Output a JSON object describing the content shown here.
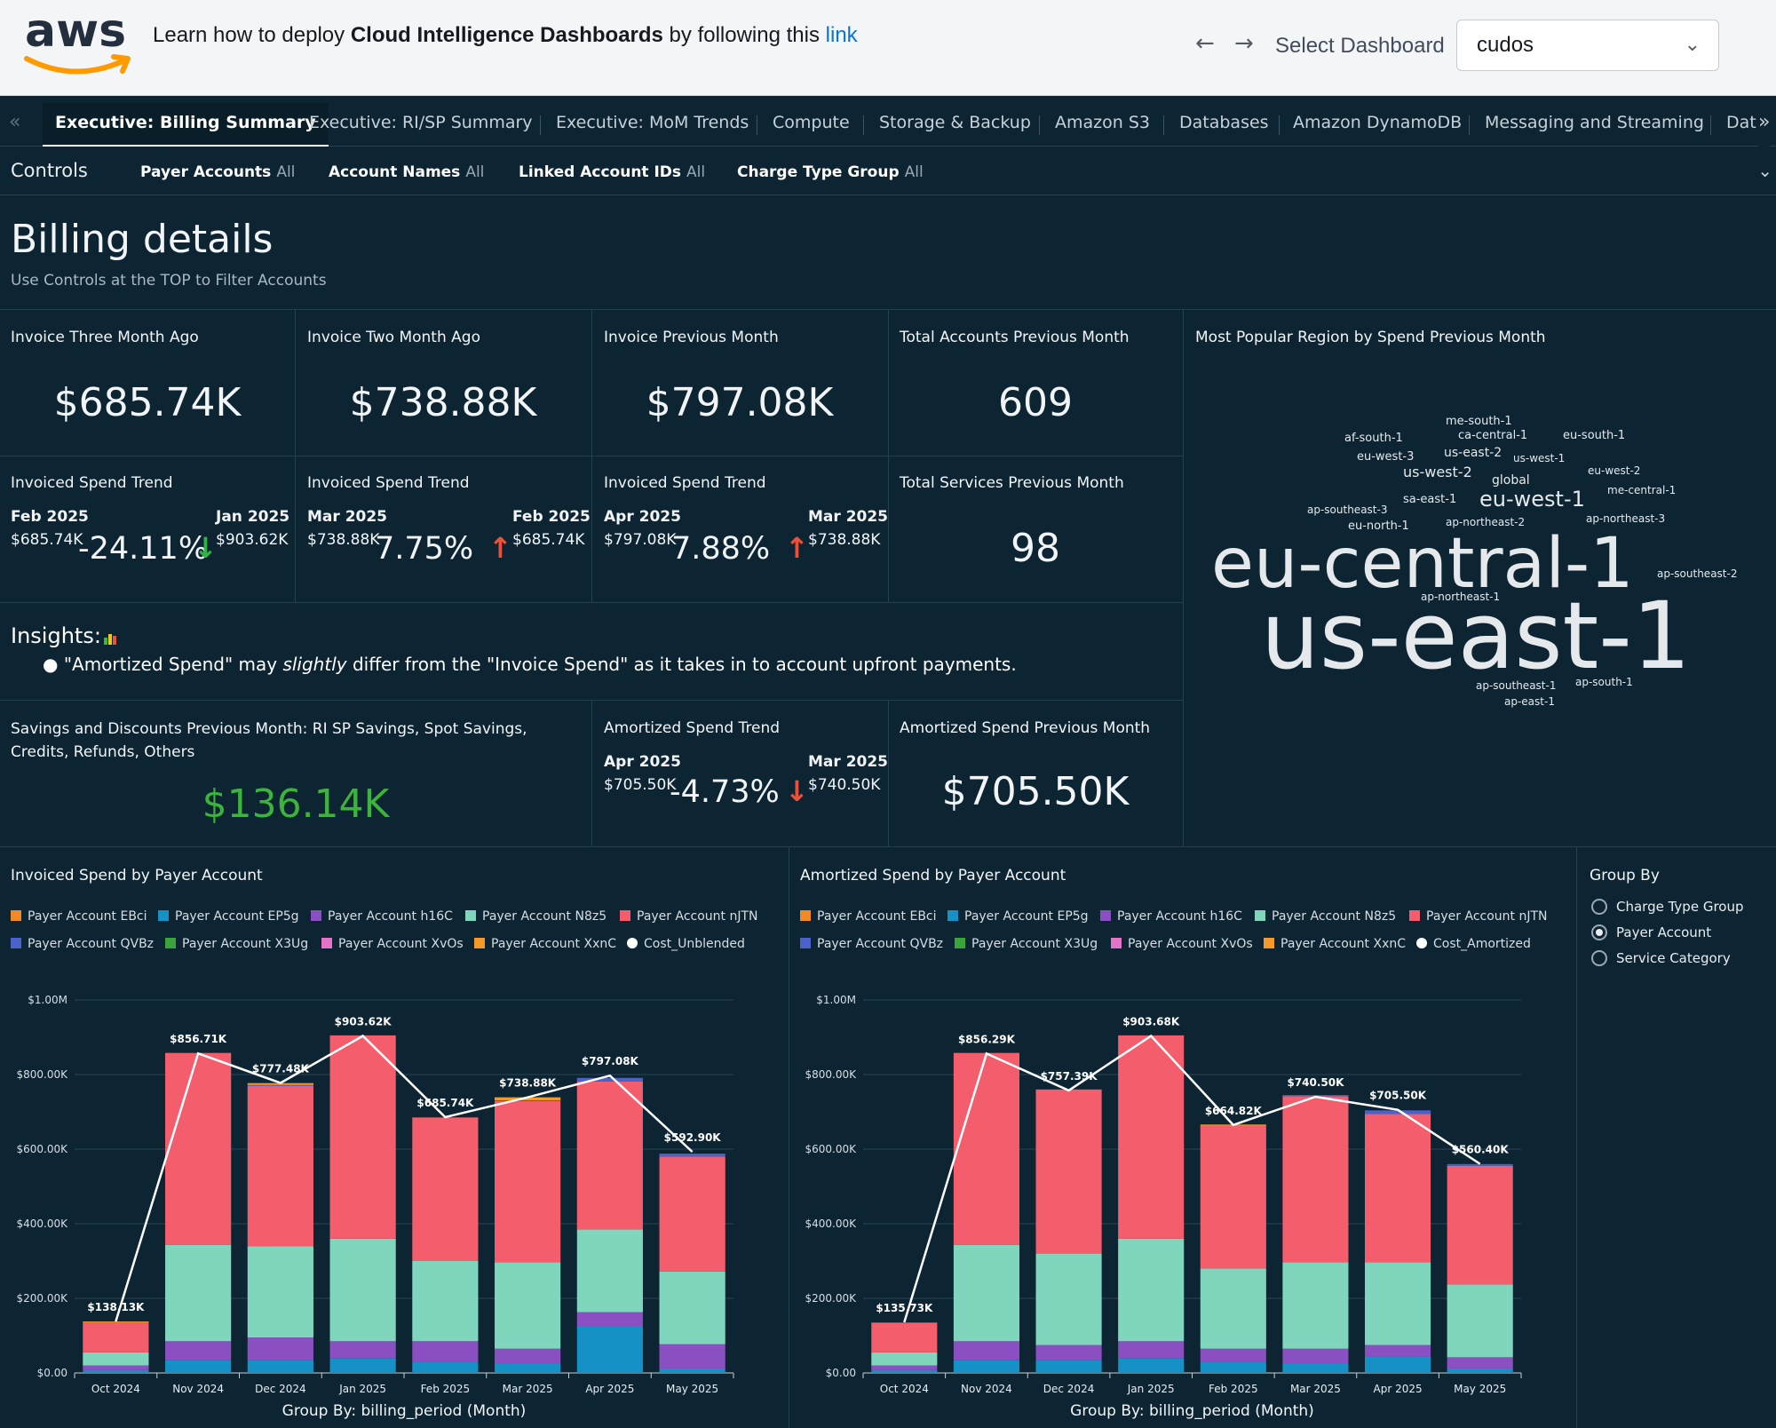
{
  "topbar": {
    "logo_text": "aws",
    "banner": {
      "prefix": "Learn how to deploy ",
      "bold": "Cloud Intelligence Dashboards",
      "middle": " by following this ",
      "link": "link"
    },
    "back_icon": "arrow-left-icon",
    "forward_icon": "arrow-right-icon",
    "select_label": "Select Dashboard",
    "selected_dashboard": "cudos"
  },
  "tabs": [
    {
      "label": "Executive: Billing Summary",
      "active": true
    },
    {
      "label": "Executive: RI/SP Summary"
    },
    {
      "label": "Executive: MoM Trends"
    },
    {
      "label": "Compute"
    },
    {
      "label": "Storage & Backup"
    },
    {
      "label": "Amazon S3"
    },
    {
      "label": "Databases"
    },
    {
      "label": "Amazon DynamoDB"
    },
    {
      "label": "Messaging and Streaming"
    },
    {
      "label": "Dat"
    }
  ],
  "controls": {
    "title": "Controls",
    "items": [
      {
        "label": "Payer Accounts",
        "value": "All"
      },
      {
        "label": "Account Names",
        "value": "All"
      },
      {
        "label": "Linked Account IDs",
        "value": "All"
      },
      {
        "label": "Charge Type Group",
        "value": "All"
      }
    ]
  },
  "billing": {
    "title": "Billing details",
    "subtitle": "Use Controls at the TOP to Filter Accounts"
  },
  "kpis": [
    {
      "title": "Invoice Three Month Ago",
      "value": "$685.74K"
    },
    {
      "title": "Invoice Two Month Ago",
      "value": "$738.88K"
    },
    {
      "title": "Invoice Previous Month",
      "value": "$797.08K"
    },
    {
      "title": "Total Accounts Previous Month",
      "value": "609"
    }
  ],
  "trends": [
    {
      "title": "Invoiced Spend Trend",
      "cur_label": "Feb 2025",
      "cur_value": "$685.74K",
      "pct": "-24.11%",
      "dir": "down",
      "prev_label": "Jan 2025",
      "prev_value": "$903.62K"
    },
    {
      "title": "Invoiced Spend Trend",
      "cur_label": "Mar 2025",
      "cur_value": "$738.88K",
      "pct": "7.75%",
      "dir": "up",
      "prev_label": "Feb 2025",
      "prev_value": "$685.74K"
    },
    {
      "title": "Invoiced Spend Trend",
      "cur_label": "Apr 2025",
      "cur_value": "$797.08K",
      "pct": "7.88%",
      "dir": "up",
      "prev_label": "Mar 2025",
      "prev_value": "$738.88K"
    }
  ],
  "total_services": {
    "title": "Total Services Previous Month",
    "value": "98"
  },
  "insights": {
    "title": "Insights:",
    "icon": "bar-chart-icon",
    "text_a": "\"Amortized Spend\" may ",
    "text_em": "slightly",
    "text_b": " differ from the \"Invoice Spend\" as it takes in to account upfront payments."
  },
  "savings": {
    "title": "Savings and Discounts Previous Month: RI SP Savings, Spot Savings, Credits, Refunds, Others",
    "value": "$136.14K"
  },
  "amortized_trend": {
    "title": "Amortized Spend Trend",
    "cur_label": "Apr 2025",
    "cur_value": "$705.50K",
    "pct": "-4.73%",
    "dir": "down",
    "prev_label": "Mar 2025",
    "prev_value": "$740.50K"
  },
  "amortized_prev": {
    "title": "Amortized Spend Previous Month",
    "value": "$705.50K"
  },
  "wordcloud": {
    "title": "Most Popular Region by Spend Previous Month",
    "words": [
      "me-south-1",
      "af-south-1",
      "ca-central-1",
      "eu-south-1",
      "eu-west-3",
      "us-east-2",
      "us-west-1",
      "us-west-2",
      "eu-west-2",
      "global",
      "me-central-1",
      "sa-east-1",
      "eu-west-1",
      "ap-southeast-3",
      "ap-northeast-3",
      "eu-north-1",
      "ap-northeast-2",
      "eu-central-1",
      "ap-southeast-2",
      "ap-northeast-1",
      "us-east-1",
      "ap-south-1",
      "ap-southeast-1",
      "ap-east-1"
    ]
  },
  "colors": {
    "EBci": "#f08a24",
    "EP5g": "#1591c5",
    "h16C": "#8a4fc0",
    "N8z5": "#7fd6bd",
    "nJTN": "#f45d6c",
    "QVBz": "#4b63c9",
    "X3Ug": "#3aa33a",
    "XvOs": "#e374c7",
    "XxnC": "#f39a2a",
    "line": "#ffffff"
  },
  "groupby": {
    "title": "Group By",
    "options": [
      "Charge Type Group",
      "Payer Account",
      "Service Category"
    ],
    "selected": 1
  },
  "chart_data": [
    {
      "type": "bar",
      "title": "Invoiced Spend by Payer Account",
      "stacked": true,
      "xlabel": "Group By: billing_period (Month)",
      "categories": [
        "Oct 2024",
        "Nov 2024",
        "Dec 2024",
        "Jan 2025",
        "Feb 2025",
        "Mar 2025",
        "Apr 2025",
        "May 2025"
      ],
      "yticks": [
        "$0.00",
        "$200.00K",
        "$400.00K",
        "$600.00K",
        "$800.00K",
        "$1.00M"
      ],
      "ylim": [
        0,
        1000
      ],
      "grid": true,
      "legend_position": "top",
      "series": [
        {
          "name": "Payer Account EBci",
          "key": "EBci",
          "values": [
            0,
            0,
            0,
            0,
            0,
            0,
            0,
            0
          ]
        },
        {
          "name": "Payer Account EP5g",
          "key": "EP5g",
          "values": [
            8,
            35,
            35,
            40,
            30,
            25,
            125,
            12
          ]
        },
        {
          "name": "Payer Account h16C",
          "key": "h16C",
          "values": [
            12,
            50,
            60,
            45,
            55,
            40,
            38,
            65
          ]
        },
        {
          "name": "Payer Account N8z5",
          "key": "N8z5",
          "values": [
            35,
            258,
            245,
            275,
            215,
            232,
            222,
            195
          ]
        },
        {
          "name": "Payer Account nJTN",
          "key": "nJTN",
          "values": [
            80,
            515,
            430,
            545,
            385,
            432,
            396,
            308
          ]
        },
        {
          "name": "Payer Account QVBz",
          "key": "QVBz",
          "values": [
            0,
            0,
            2,
            0,
            0,
            2,
            10,
            8
          ]
        },
        {
          "name": "Payer Account X3Ug",
          "key": "X3Ug",
          "values": [
            0,
            0,
            0,
            0,
            0,
            0,
            0,
            0
          ]
        },
        {
          "name": "Payer Account XvOs",
          "key": "XvOs",
          "values": [
            0,
            0,
            0,
            0,
            0,
            0,
            0,
            0
          ]
        },
        {
          "name": "Payer Account XxnC",
          "key": "XxnC",
          "values": [
            3,
            0,
            5,
            0,
            0,
            8,
            0,
            0
          ]
        }
      ],
      "line": {
        "name": "Cost_Unblended",
        "values": [
          138.13,
          856.71,
          777.48,
          903.62,
          685.74,
          738.88,
          797.08,
          592.9
        ],
        "labels": [
          "$138.13K",
          "$856.71K",
          "$777.48K",
          "$903.62K",
          "$685.74K",
          "$738.88K",
          "$797.08K",
          "$592.90K"
        ]
      }
    },
    {
      "type": "bar",
      "title": "Amortized Spend by Payer Account",
      "stacked": true,
      "xlabel": "Group By: billing_period (Month)",
      "categories": [
        "Oct 2024",
        "Nov 2024",
        "Dec 2024",
        "Jan 2025",
        "Feb 2025",
        "Mar 2025",
        "Apr 2025",
        "May 2025"
      ],
      "yticks": [
        "$0.00",
        "$200.00K",
        "$400.00K",
        "$600.00K",
        "$800.00K",
        "$1.00M"
      ],
      "ylim": [
        0,
        1000
      ],
      "grid": true,
      "legend_position": "top",
      "series": [
        {
          "name": "Payer Account EBci",
          "key": "EBci",
          "values": [
            0,
            0,
            0,
            0,
            0,
            0,
            0,
            0
          ]
        },
        {
          "name": "Payer Account EP5g",
          "key": "EP5g",
          "values": [
            8,
            35,
            35,
            40,
            30,
            25,
            45,
            12
          ]
        },
        {
          "name": "Payer Account h16C",
          "key": "h16C",
          "values": [
            12,
            50,
            40,
            45,
            35,
            40,
            30,
            30
          ]
        },
        {
          "name": "Payer Account N8z5",
          "key": "N8z5",
          "values": [
            35,
            258,
            245,
            275,
            215,
            232,
            222,
            195
          ]
        },
        {
          "name": "Payer Account nJTN",
          "key": "nJTN",
          "values": [
            80,
            515,
            440,
            545,
            383,
            445,
            397,
            318
          ]
        },
        {
          "name": "Payer Account QVBz",
          "key": "QVBz",
          "values": [
            0,
            0,
            0,
            0,
            0,
            3,
            10,
            5
          ]
        },
        {
          "name": "Payer Account X3Ug",
          "key": "X3Ug",
          "values": [
            0,
            0,
            0,
            0,
            0,
            0,
            0,
            0
          ]
        },
        {
          "name": "Payer Account XvOs",
          "key": "XvOs",
          "values": [
            0,
            0,
            0,
            0,
            0,
            0,
            0,
            0
          ]
        },
        {
          "name": "Payer Account XxnC",
          "key": "XxnC",
          "values": [
            0,
            0,
            0,
            0,
            3,
            0,
            0,
            0
          ]
        }
      ],
      "line": {
        "name": "Cost_Amortized",
        "values": [
          135.73,
          856.29,
          757.39,
          903.68,
          664.82,
          740.5,
          705.5,
          560.4
        ],
        "labels": [
          "$135.73K",
          "$856.29K",
          "$757.39K",
          "$903.68K",
          "$664.82K",
          "$740.50K",
          "$705.50K",
          "$560.40K"
        ]
      }
    }
  ]
}
